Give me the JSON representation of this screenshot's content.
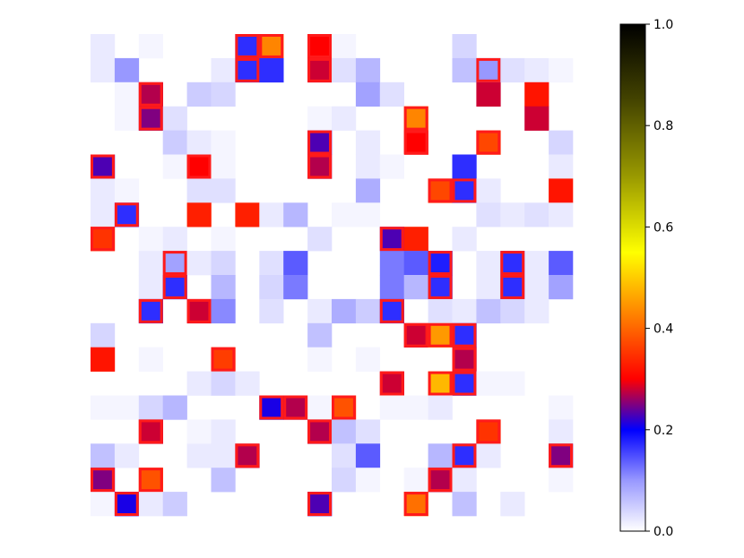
{
  "chart_data": {
    "type": "heatmap",
    "rows": 20,
    "cols": 20,
    "vmin": 0.0,
    "vmax": 1.0,
    "colormap": "gnuplot2_r",
    "axis_visible": false,
    "highlight_color": "#ff1a1a",
    "cells": [
      [
        0,
        0,
        0.02
      ],
      [
        0,
        2,
        0.01
      ],
      [
        0,
        6,
        0.17
      ],
      [
        0,
        7,
        0.43
      ],
      [
        0,
        9,
        0.3
      ],
      [
        0,
        10,
        0.01
      ],
      [
        0,
        15,
        0.04
      ],
      [
        1,
        0,
        0.02
      ],
      [
        1,
        1,
        0.1
      ],
      [
        1,
        5,
        0.02
      ],
      [
        1,
        6,
        0.17
      ],
      [
        1,
        7,
        0.17
      ],
      [
        1,
        9,
        0.28
      ],
      [
        1,
        10,
        0.03
      ],
      [
        1,
        11,
        0.07
      ],
      [
        1,
        15,
        0.06
      ],
      [
        1,
        16,
        0.1
      ],
      [
        1,
        17,
        0.03
      ],
      [
        1,
        18,
        0.02
      ],
      [
        1,
        19,
        0.01
      ],
      [
        2,
        1,
        0.01
      ],
      [
        2,
        2,
        0.27
      ],
      [
        2,
        4,
        0.05
      ],
      [
        2,
        5,
        0.04
      ],
      [
        2,
        11,
        0.09
      ],
      [
        2,
        12,
        0.03
      ],
      [
        2,
        16,
        0.28
      ],
      [
        2,
        18,
        0.32
      ],
      [
        3,
        1,
        0.01
      ],
      [
        3,
        2,
        0.25
      ],
      [
        3,
        3,
        0.03
      ],
      [
        3,
        9,
        0.01
      ],
      [
        3,
        10,
        0.02
      ],
      [
        3,
        13,
        0.43
      ],
      [
        3,
        18,
        0.28
      ],
      [
        4,
        3,
        0.05
      ],
      [
        4,
        4,
        0.02
      ],
      [
        4,
        5,
        0.01
      ],
      [
        4,
        9,
        0.23
      ],
      [
        4,
        11,
        0.02
      ],
      [
        4,
        13,
        0.3
      ],
      [
        4,
        16,
        0.37
      ],
      [
        4,
        19,
        0.04
      ],
      [
        5,
        0,
        0.23
      ],
      [
        5,
        3,
        0.01
      ],
      [
        5,
        4,
        0.3
      ],
      [
        5,
        5,
        0.01
      ],
      [
        5,
        9,
        0.27
      ],
      [
        5,
        11,
        0.02
      ],
      [
        5,
        12,
        0.01
      ],
      [
        5,
        15,
        0.17
      ],
      [
        5,
        19,
        0.02
      ],
      [
        6,
        0,
        0.02
      ],
      [
        6,
        1,
        0.01
      ],
      [
        6,
        4,
        0.03
      ],
      [
        6,
        5,
        0.03
      ],
      [
        6,
        11,
        0.08
      ],
      [
        6,
        14,
        0.37
      ],
      [
        6,
        15,
        0.17
      ],
      [
        6,
        16,
        0.02
      ],
      [
        6,
        19,
        0.32
      ],
      [
        7,
        0,
        0.02
      ],
      [
        7,
        1,
        0.17
      ],
      [
        7,
        4,
        0.33
      ],
      [
        7,
        6,
        0.33
      ],
      [
        7,
        7,
        0.02
      ],
      [
        7,
        8,
        0.07
      ],
      [
        7,
        10,
        0.01
      ],
      [
        7,
        11,
        0.01
      ],
      [
        7,
        16,
        0.03
      ],
      [
        7,
        17,
        0.02
      ],
      [
        7,
        18,
        0.03
      ],
      [
        7,
        19,
        0.02
      ],
      [
        8,
        0,
        0.35
      ],
      [
        8,
        2,
        0.01
      ],
      [
        8,
        3,
        0.02
      ],
      [
        8,
        5,
        0.01
      ],
      [
        8,
        9,
        0.03
      ],
      [
        8,
        12,
        0.23
      ],
      [
        8,
        13,
        0.33
      ],
      [
        8,
        15,
        0.02
      ],
      [
        9,
        2,
        0.02
      ],
      [
        9,
        3,
        0.09
      ],
      [
        9,
        4,
        0.02
      ],
      [
        9,
        5,
        0.04
      ],
      [
        9,
        7,
        0.03
      ],
      [
        9,
        8,
        0.14
      ],
      [
        9,
        12,
        0.12
      ],
      [
        9,
        13,
        0.14
      ],
      [
        9,
        14,
        0.18
      ],
      [
        9,
        16,
        0.02
      ],
      [
        9,
        17,
        0.17
      ],
      [
        9,
        18,
        0.02
      ],
      [
        9,
        19,
        0.14
      ],
      [
        10,
        2,
        0.02
      ],
      [
        10,
        3,
        0.17
      ],
      [
        10,
        5,
        0.07
      ],
      [
        10,
        7,
        0.04
      ],
      [
        10,
        8,
        0.12
      ],
      [
        10,
        12,
        0.12
      ],
      [
        10,
        13,
        0.07
      ],
      [
        10,
        14,
        0.17
      ],
      [
        10,
        16,
        0.02
      ],
      [
        10,
        17,
        0.17
      ],
      [
        10,
        18,
        0.02
      ],
      [
        10,
        19,
        0.09
      ],
      [
        11,
        2,
        0.17
      ],
      [
        11,
        4,
        0.28
      ],
      [
        11,
        5,
        0.11
      ],
      [
        11,
        7,
        0.03
      ],
      [
        11,
        9,
        0.02
      ],
      [
        11,
        10,
        0.08
      ],
      [
        11,
        11,
        0.05
      ],
      [
        11,
        12,
        0.17
      ],
      [
        11,
        14,
        0.03
      ],
      [
        11,
        15,
        0.02
      ],
      [
        11,
        16,
        0.06
      ],
      [
        11,
        17,
        0.04
      ],
      [
        11,
        18,
        0.02
      ],
      [
        12,
        0,
        0.04
      ],
      [
        12,
        9,
        0.06
      ],
      [
        12,
        13,
        0.28
      ],
      [
        12,
        14,
        0.45
      ],
      [
        12,
        15,
        0.17
      ],
      [
        13,
        0,
        0.32
      ],
      [
        13,
        2,
        0.01
      ],
      [
        13,
        5,
        0.36
      ],
      [
        13,
        9,
        0.01
      ],
      [
        13,
        11,
        0.01
      ],
      [
        13,
        15,
        0.27
      ],
      [
        14,
        4,
        0.02
      ],
      [
        14,
        5,
        0.04
      ],
      [
        14,
        6,
        0.02
      ],
      [
        14,
        12,
        0.28
      ],
      [
        14,
        14,
        0.48
      ],
      [
        14,
        15,
        0.17
      ],
      [
        14,
        16,
        0.01
      ],
      [
        14,
        17,
        0.01
      ],
      [
        15,
        0,
        0.01
      ],
      [
        15,
        1,
        0.01
      ],
      [
        15,
        2,
        0.04
      ],
      [
        15,
        3,
        0.07
      ],
      [
        15,
        7,
        0.21
      ],
      [
        15,
        8,
        0.27
      ],
      [
        15,
        9,
        0.01
      ],
      [
        15,
        10,
        0.38
      ],
      [
        15,
        12,
        0.01
      ],
      [
        15,
        13,
        0.01
      ],
      [
        15,
        14,
        0.02
      ],
      [
        15,
        19,
        0.01
      ],
      [
        16,
        2,
        0.28
      ],
      [
        16,
        4,
        0.01
      ],
      [
        16,
        5,
        0.02
      ],
      [
        16,
        9,
        0.27
      ],
      [
        16,
        10,
        0.06
      ],
      [
        16,
        11,
        0.03
      ],
      [
        16,
        16,
        0.35
      ],
      [
        16,
        19,
        0.02
      ],
      [
        17,
        0,
        0.06
      ],
      [
        17,
        1,
        0.02
      ],
      [
        17,
        4,
        0.02
      ],
      [
        17,
        5,
        0.02
      ],
      [
        17,
        6,
        0.27
      ],
      [
        17,
        10,
        0.03
      ],
      [
        17,
        11,
        0.14
      ],
      [
        17,
        14,
        0.07
      ],
      [
        17,
        15,
        0.17
      ],
      [
        17,
        16,
        0.02
      ],
      [
        17,
        19,
        0.25
      ],
      [
        18,
        0,
        0.25
      ],
      [
        18,
        2,
        0.38
      ],
      [
        18,
        5,
        0.06
      ],
      [
        18,
        10,
        0.04
      ],
      [
        18,
        11,
        0.01
      ],
      [
        18,
        13,
        0.01
      ],
      [
        18,
        14,
        0.27
      ],
      [
        18,
        15,
        0.02
      ],
      [
        18,
        19,
        0.01
      ],
      [
        19,
        0,
        0.01
      ],
      [
        19,
        1,
        0.21
      ],
      [
        19,
        2,
        0.02
      ],
      [
        19,
        3,
        0.05
      ],
      [
        19,
        9,
        0.23
      ],
      [
        19,
        13,
        0.41
      ],
      [
        19,
        15,
        0.06
      ],
      [
        19,
        17,
        0.02
      ]
    ],
    "highlighted": [
      [
        0,
        6
      ],
      [
        0,
        7
      ],
      [
        0,
        9
      ],
      [
        1,
        6
      ],
      [
        1,
        9
      ],
      [
        1,
        16
      ],
      [
        2,
        2
      ],
      [
        3,
        2
      ],
      [
        3,
        13
      ],
      [
        4,
        9
      ],
      [
        4,
        13
      ],
      [
        4,
        16
      ],
      [
        5,
        0
      ],
      [
        5,
        4
      ],
      [
        5,
        9
      ],
      [
        6,
        14
      ],
      [
        6,
        15
      ],
      [
        7,
        1
      ],
      [
        8,
        0
      ],
      [
        8,
        12
      ],
      [
        9,
        3
      ],
      [
        9,
        14
      ],
      [
        9,
        17
      ],
      [
        10,
        3
      ],
      [
        10,
        14
      ],
      [
        10,
        17
      ],
      [
        11,
        2
      ],
      [
        11,
        4
      ],
      [
        11,
        12
      ],
      [
        12,
        13
      ],
      [
        12,
        14
      ],
      [
        12,
        15
      ],
      [
        13,
        5
      ],
      [
        13,
        15
      ],
      [
        14,
        12
      ],
      [
        14,
        14
      ],
      [
        14,
        15
      ],
      [
        15,
        7
      ],
      [
        15,
        8
      ],
      [
        15,
        10
      ],
      [
        16,
        2
      ],
      [
        16,
        9
      ],
      [
        16,
        16
      ],
      [
        17,
        6
      ],
      [
        17,
        15
      ],
      [
        17,
        19
      ],
      [
        18,
        0
      ],
      [
        18,
        2
      ],
      [
        18,
        14
      ],
      [
        19,
        1
      ],
      [
        19,
        9
      ],
      [
        19,
        13
      ]
    ],
    "colorbar": {
      "ticks": [
        0.0,
        0.2,
        0.4,
        0.6,
        0.8,
        1.0
      ],
      "tick_labels": [
        "0.0",
        "0.2",
        "0.4",
        "0.6",
        "0.8",
        "1.0"
      ]
    }
  }
}
